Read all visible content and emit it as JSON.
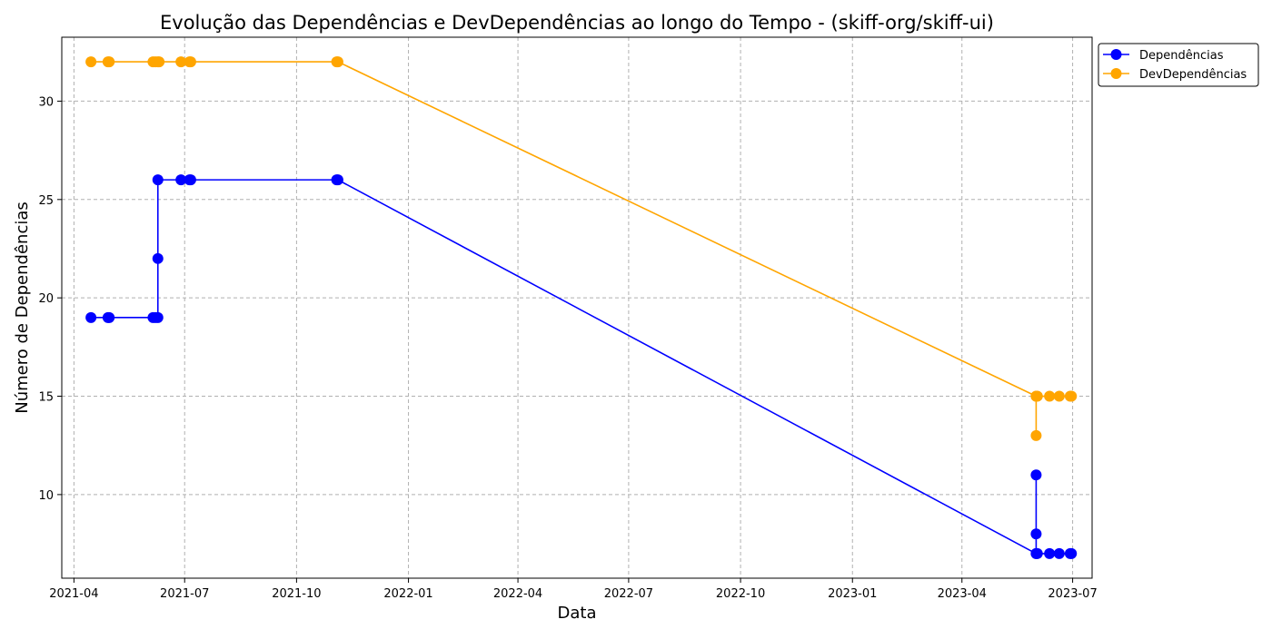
{
  "chart_data": {
    "type": "line",
    "title": "Evolução das Dependências e DevDependências ao longo do Tempo - (skiff-org/skiff-ui)",
    "xlabel": "Data",
    "ylabel": "Número de Dependências",
    "x_axis": {
      "type": "date",
      "range": [
        "2021-03-22",
        "2023-07-17"
      ],
      "ticks": [
        {
          "date": "2021-04-01",
          "label": "2021-04"
        },
        {
          "date": "2021-07-01",
          "label": "2021-07"
        },
        {
          "date": "2021-10-01",
          "label": "2021-10"
        },
        {
          "date": "2022-01-01",
          "label": "2022-01"
        },
        {
          "date": "2022-04-01",
          "label": "2022-04"
        },
        {
          "date": "2022-07-01",
          "label": "2022-07"
        },
        {
          "date": "2022-10-01",
          "label": "2022-10"
        },
        {
          "date": "2023-01-01",
          "label": "2023-01"
        },
        {
          "date": "2023-04-01",
          "label": "2023-04"
        },
        {
          "date": "2023-07-01",
          "label": "2023-07"
        }
      ]
    },
    "y_axis": {
      "range": [
        5.75,
        33.25
      ],
      "ticks": [
        10,
        15,
        20,
        25,
        30
      ]
    },
    "grid": true,
    "legend_position": "outside-top-right",
    "series": [
      {
        "name": "Dependências",
        "color": "#0000ff",
        "points": [
          {
            "x": "2021-04-15",
            "y": 19
          },
          {
            "x": "2021-04-29",
            "y": 19
          },
          {
            "x": "2021-04-30",
            "y": 19
          },
          {
            "x": "2021-06-05",
            "y": 19
          },
          {
            "x": "2021-06-07",
            "y": 19
          },
          {
            "x": "2021-06-09",
            "y": 19
          },
          {
            "x": "2021-06-09",
            "y": 22
          },
          {
            "x": "2021-06-09",
            "y": 26
          },
          {
            "x": "2021-06-28",
            "y": 26
          },
          {
            "x": "2021-07-05",
            "y": 26
          },
          {
            "x": "2021-07-06",
            "y": 26
          },
          {
            "x": "2021-11-03",
            "y": 26
          },
          {
            "x": "2021-11-04",
            "y": 26
          },
          {
            "x": "2023-06-01",
            "y": 7
          },
          {
            "x": "2023-06-01",
            "y": 11
          },
          {
            "x": "2023-06-01",
            "y": 8
          },
          {
            "x": "2023-06-01",
            "y": 7
          },
          {
            "x": "2023-06-02",
            "y": 7
          },
          {
            "x": "2023-06-12",
            "y": 7
          },
          {
            "x": "2023-06-20",
            "y": 7
          },
          {
            "x": "2023-06-29",
            "y": 7
          },
          {
            "x": "2023-06-30",
            "y": 7
          }
        ]
      },
      {
        "name": "DevDependências",
        "color": "#ffa500",
        "points": [
          {
            "x": "2021-04-15",
            "y": 32
          },
          {
            "x": "2021-04-29",
            "y": 32
          },
          {
            "x": "2021-04-30",
            "y": 32
          },
          {
            "x": "2021-06-05",
            "y": 32
          },
          {
            "x": "2021-06-07",
            "y": 32
          },
          {
            "x": "2021-06-09",
            "y": 32
          },
          {
            "x": "2021-06-10",
            "y": 32
          },
          {
            "x": "2021-06-28",
            "y": 32
          },
          {
            "x": "2021-07-05",
            "y": 32
          },
          {
            "x": "2021-07-06",
            "y": 32
          },
          {
            "x": "2021-11-03",
            "y": 32
          },
          {
            "x": "2021-11-04",
            "y": 32
          },
          {
            "x": "2023-06-01",
            "y": 15
          },
          {
            "x": "2023-06-01",
            "y": 13
          },
          {
            "x": "2023-06-01",
            "y": 15
          },
          {
            "x": "2023-06-02",
            "y": 15
          },
          {
            "x": "2023-06-12",
            "y": 15
          },
          {
            "x": "2023-06-20",
            "y": 15
          },
          {
            "x": "2023-06-29",
            "y": 15
          },
          {
            "x": "2023-06-30",
            "y": 15
          }
        ]
      }
    ]
  }
}
